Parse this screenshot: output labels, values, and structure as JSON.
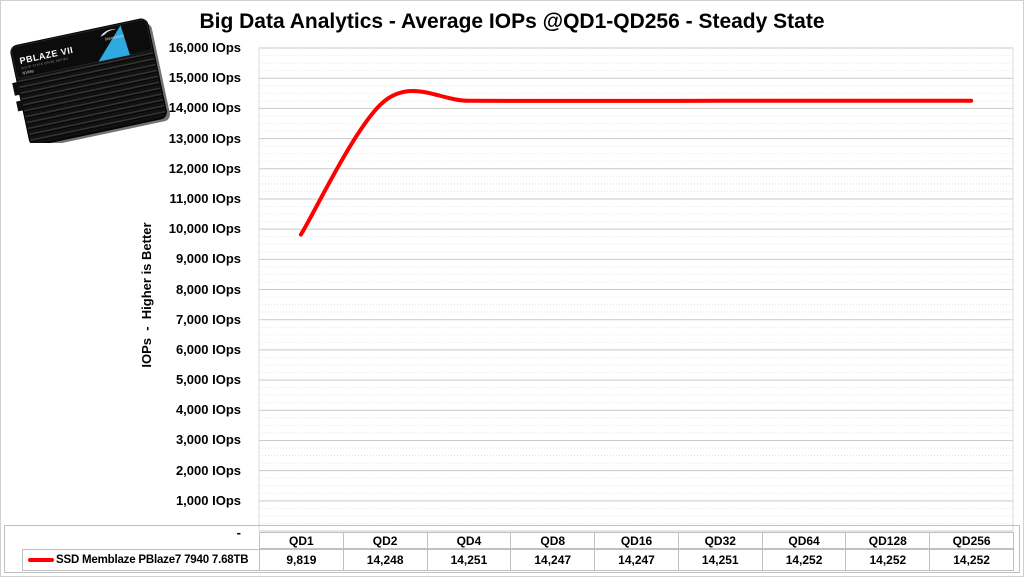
{
  "window": {
    "background": "#ffffff",
    "border_color": "#d0d0d0"
  },
  "product_badge": {
    "name": "Memblaze PBlaze7 SSD product photo",
    "label_title": "PBLAZE VII",
    "label_subtitle": "SOLID STATE DRIVE SERIES",
    "label_nvme": "NVMe",
    "brand": "Memblaze",
    "body_color": "#151515",
    "accent_color": "#2fa9e1"
  },
  "chart_data": {
    "type": "line",
    "smoothed": true,
    "title": "Big Data Analytics - Average IOPs @QD1-QD256 - Steady State",
    "ylabel": "IOPs  -  Higher is Better",
    "xlabel": "",
    "categories": [
      "QD1",
      "QD2",
      "QD4",
      "QD8",
      "QD16",
      "QD32",
      "QD64",
      "QD128",
      "QD256"
    ],
    "series": [
      {
        "name": "SSD Memblaze PBlaze7 7940 7.68TB",
        "color": "#fe0000",
        "values": [
          9819,
          14248,
          14251,
          14247,
          14247,
          14251,
          14252,
          14252,
          14252
        ]
      }
    ],
    "ylim": [
      0,
      16000
    ],
    "y_major_step": 1000,
    "y_minor_step": 250,
    "y_tick_suffix": " IOps",
    "y_zero_label": "-",
    "grid": true,
    "grid_major_color": "#c9c9c9",
    "grid_minor_color": "#e4e4e4",
    "legend_position": "data-table-left"
  }
}
